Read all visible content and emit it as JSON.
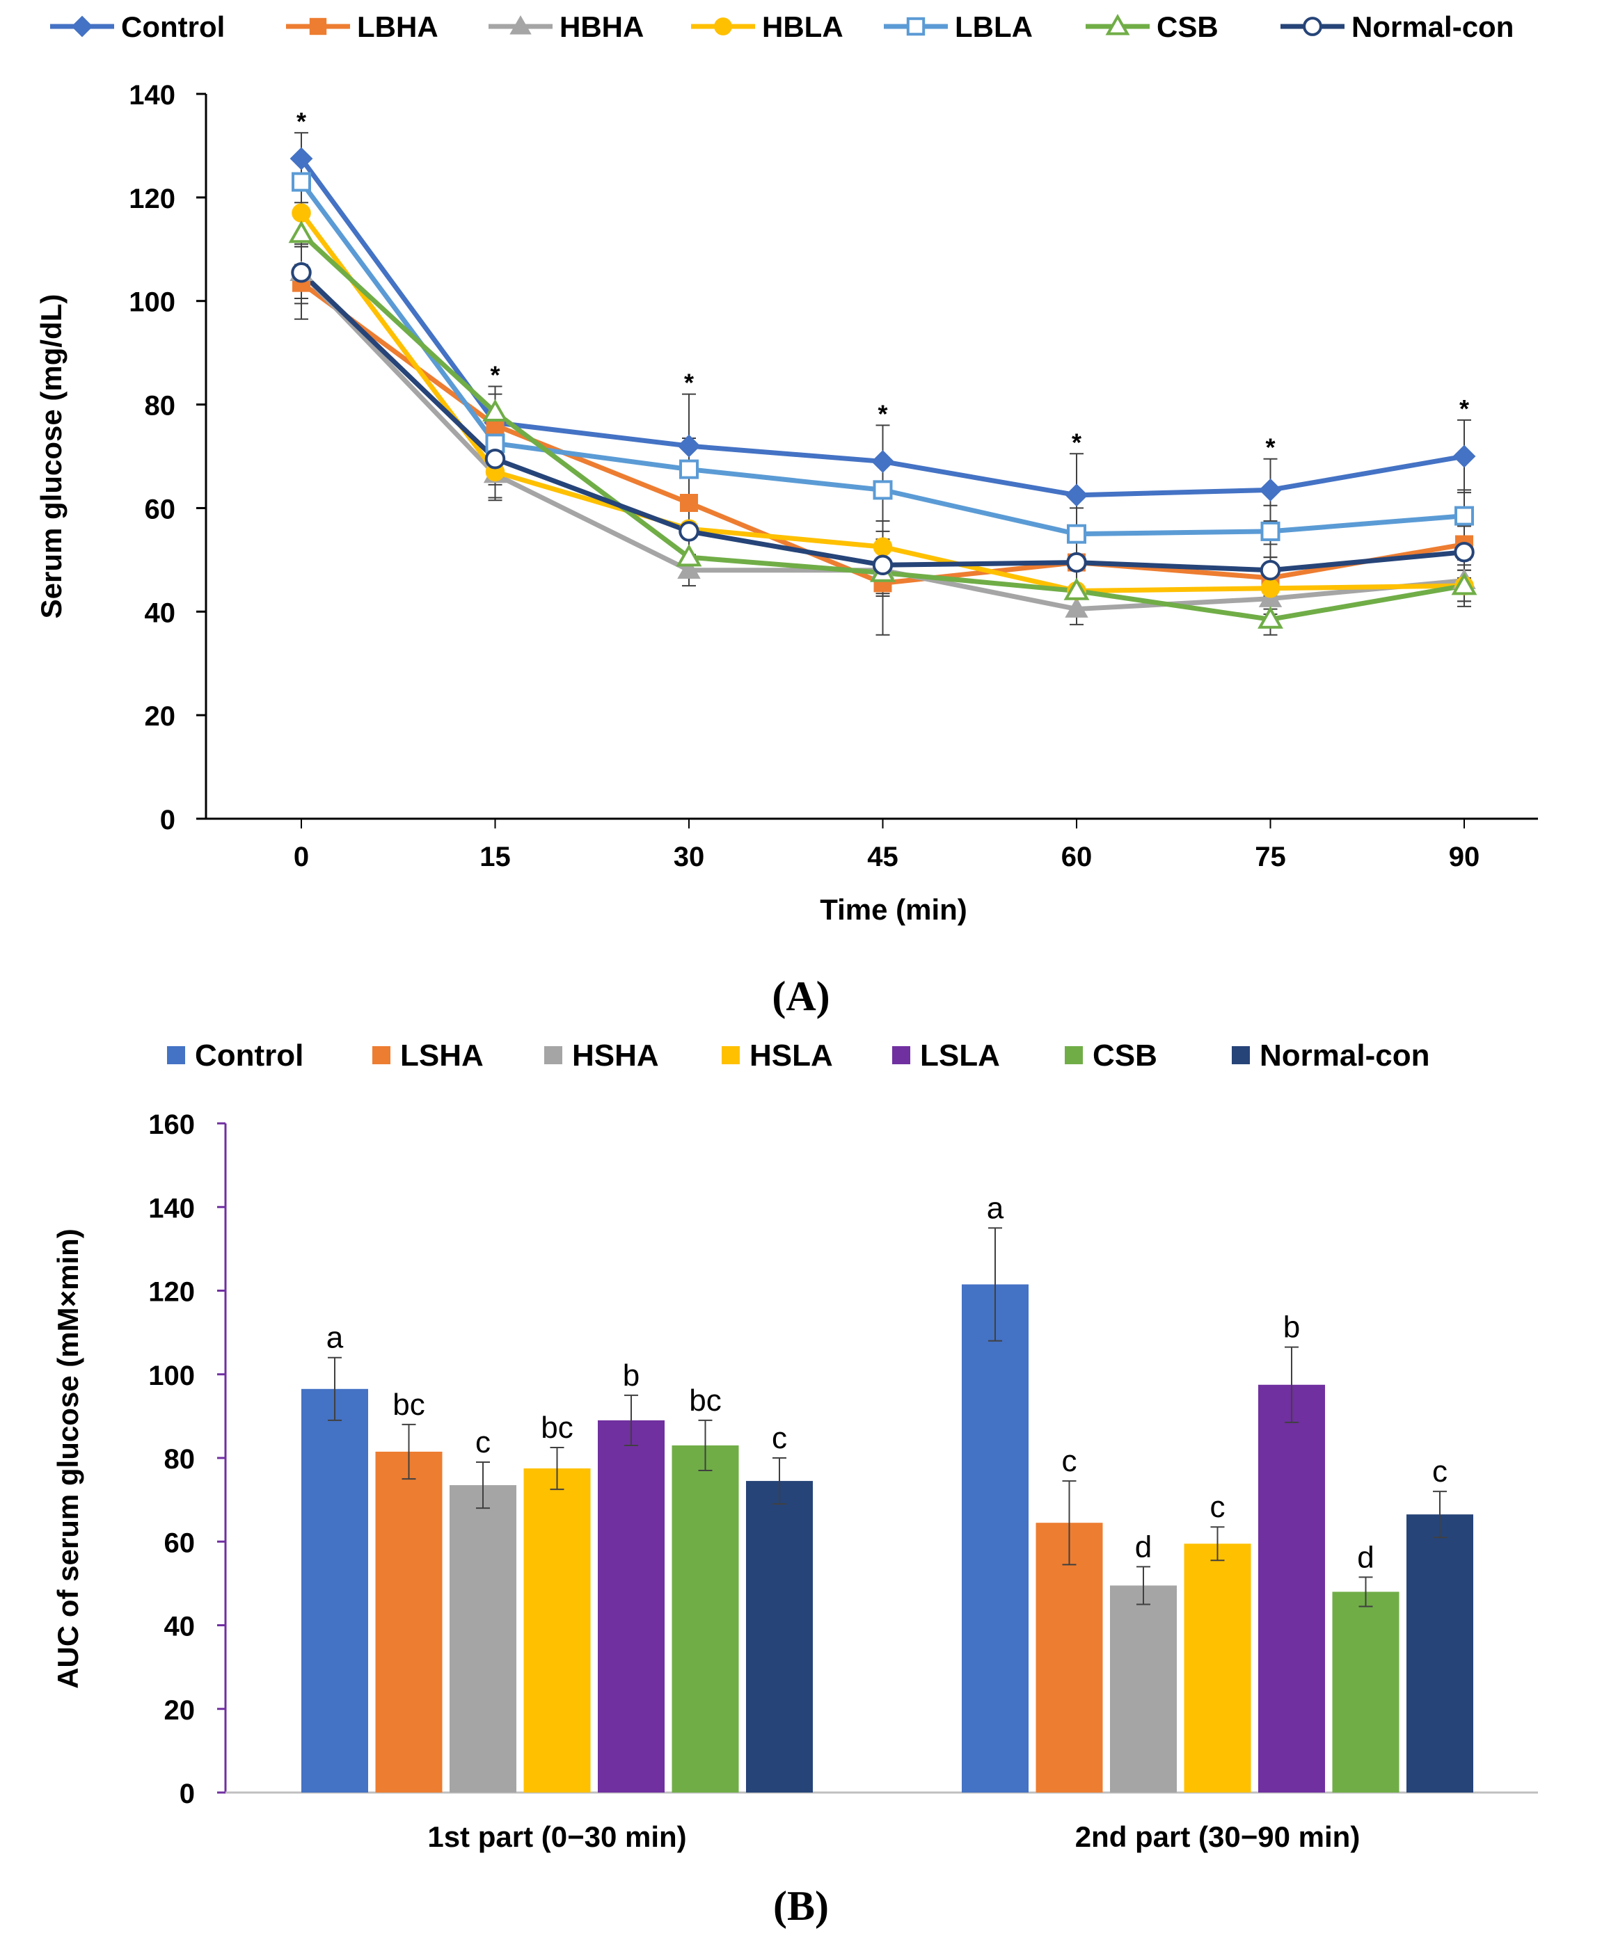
{
  "chart_data": [
    {
      "type": "line",
      "panel_label": "A",
      "title": "",
      "xlabel": "Time (min)",
      "ylabel": "Serum glucose (mg/dL)",
      "x": [
        0,
        15,
        30,
        45,
        60,
        75,
        90
      ],
      "x_tick_labels": [
        "0",
        "15",
        "30",
        "45",
        "60",
        "75",
        "90"
      ],
      "ylim": [
        0,
        140
      ],
      "y_ticks": [
        0,
        20,
        40,
        60,
        80,
        100,
        120,
        140
      ],
      "y_tick_labels": [
        "0",
        "20",
        "40",
        "60",
        "80",
        "100",
        "120",
        "140"
      ],
      "grid": false,
      "legend_position": "top",
      "significance_marker": "*",
      "significance_x": [
        0,
        15,
        30,
        45,
        60,
        75,
        90
      ],
      "series": [
        {
          "name": "Control",
          "color": "#4472c4",
          "marker": "diamond",
          "values": [
            127.5,
            76.5,
            72,
            69,
            62.5,
            63.5,
            70
          ],
          "errors": [
            5,
            7,
            10,
            7,
            8,
            6,
            7
          ]
        },
        {
          "name": "LBHA",
          "color": "#ed7d31",
          "marker": "square",
          "values": [
            103.5,
            76,
            61,
            45.5,
            49.5,
            46.5,
            53
          ],
          "errors": [
            7,
            6,
            6,
            10,
            5,
            4,
            5
          ]
        },
        {
          "name": "HBHA",
          "color": "#a5a5a5",
          "marker": "triangle",
          "values": [
            105.5,
            66.5,
            48,
            48,
            40.5,
            42.5,
            46
          ],
          "errors": [
            6,
            5,
            3,
            5,
            3,
            3,
            4
          ]
        },
        {
          "name": "HBLA",
          "color": "#ffc000",
          "marker": "circle",
          "values": [
            117,
            67,
            56,
            52.5,
            44,
            44.5,
            45
          ],
          "errors": [
            6,
            5,
            5,
            5,
            4,
            4,
            4
          ]
        },
        {
          "name": "LBLA",
          "color": "#5b9bd5",
          "marker": "open-square",
          "values": [
            123,
            72.5,
            67.5,
            63.5,
            55,
            55.5,
            58.5
          ],
          "errors": [
            5,
            6,
            6,
            6,
            5,
            5,
            5
          ]
        },
        {
          "name": "CSB",
          "color": "#70ad47",
          "marker": "open-triangle",
          "values": [
            113,
            78.5,
            50.5,
            47.5,
            44,
            38.5,
            45
          ],
          "errors": [
            6,
            5,
            4,
            4,
            4,
            3,
            3
          ]
        },
        {
          "name": "Normal-con",
          "color": "#264478",
          "marker": "open-circle",
          "values": [
            105.5,
            69.5,
            55.5,
            49,
            49.5,
            48,
            51.5
          ],
          "errors": [
            5,
            5,
            5,
            5,
            5,
            5,
            5
          ]
        }
      ]
    },
    {
      "type": "bar",
      "panel_label": "B",
      "title": "",
      "xlabel": "",
      "ylabel": "AUC of serum glucose (mM×min)",
      "categories": [
        "1st part (0−30 min)",
        "2nd part (30−90 min)"
      ],
      "ylim": [
        0,
        160
      ],
      "y_ticks": [
        0,
        20,
        40,
        60,
        80,
        100,
        120,
        140,
        160
      ],
      "y_tick_labels": [
        "0",
        "20",
        "40",
        "60",
        "80",
        "100",
        "120",
        "140",
        "160"
      ],
      "grid": false,
      "legend_position": "top",
      "series": [
        {
          "name": "Control",
          "color": "#4472c4",
          "values": [
            96.5,
            121.5
          ],
          "errors": [
            7.5,
            13.5
          ],
          "letters": [
            "a",
            "a"
          ]
        },
        {
          "name": "LSHA",
          "color": "#ed7d31",
          "values": [
            81.5,
            64.5
          ],
          "errors": [
            6.5,
            10
          ],
          "letters": [
            "bc",
            "c"
          ]
        },
        {
          "name": "HSHA",
          "color": "#a5a5a5",
          "values": [
            73.5,
            49.5
          ],
          "errors": [
            5.5,
            4.5
          ],
          "letters": [
            "c",
            "d"
          ]
        },
        {
          "name": "HSLA",
          "color": "#ffc000",
          "values": [
            77.5,
            59.5
          ],
          "errors": [
            5,
            4
          ],
          "letters": [
            "bc",
            "c"
          ]
        },
        {
          "name": "LSLA",
          "color": "#7030a0",
          "values": [
            89,
            97.5
          ],
          "errors": [
            6,
            9
          ],
          "letters": [
            "b",
            "b"
          ]
        },
        {
          "name": "CSB",
          "color": "#70ad47",
          "values": [
            83,
            48
          ],
          "errors": [
            6,
            3.5
          ],
          "letters": [
            "bc",
            "d"
          ]
        },
        {
          "name": "Normal-con",
          "color": "#264478",
          "values": [
            74.5,
            66.5
          ],
          "errors": [
            5.5,
            5.5
          ],
          "letters": [
            "c",
            "c"
          ]
        }
      ]
    }
  ]
}
